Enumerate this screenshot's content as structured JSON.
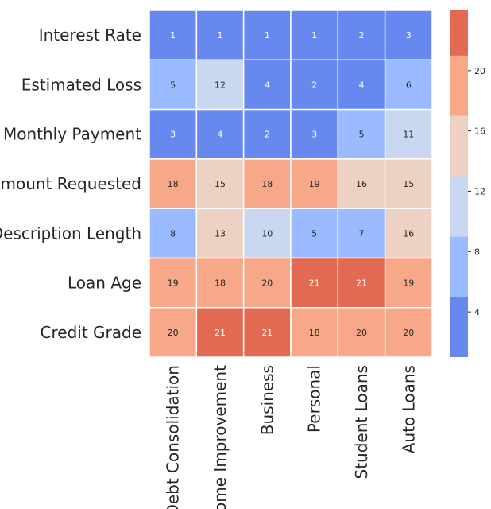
{
  "chart_data": {
    "type": "heatmap",
    "rows": [
      "Interest Rate",
      "Estimated Loss",
      "Monthly Payment",
      "Amount Requested",
      "Description Length",
      "Loan Age",
      "Credit Grade"
    ],
    "columns": [
      "Debt Consolidation",
      "Home Improvement",
      "Business",
      "Personal",
      "Student Loans",
      "Auto Loans"
    ],
    "values": [
      [
        1,
        1,
        1,
        1,
        2,
        3
      ],
      [
        5,
        12,
        4,
        2,
        4,
        6
      ],
      [
        3,
        4,
        2,
        3,
        5,
        11
      ],
      [
        18,
        15,
        18,
        19,
        16,
        15
      ],
      [
        8,
        13,
        10,
        5,
        7,
        16
      ],
      [
        19,
        18,
        20,
        21,
        21,
        19
      ],
      [
        20,
        21,
        21,
        18,
        20,
        20
      ]
    ],
    "colormap": "coolwarm",
    "bin_edges": [
      1,
      5,
      9,
      13,
      17,
      21
    ],
    "bin_colors": [
      "#6788ee",
      "#9abbff",
      "#c9d7f0",
      "#edd1c2",
      "#f7a889",
      "#e26952"
    ],
    "colorbar": {
      "range": [
        1,
        24
      ],
      "ticks": [
        4,
        8,
        12,
        16,
        20
      ]
    },
    "annotated": true,
    "grid": false
  }
}
